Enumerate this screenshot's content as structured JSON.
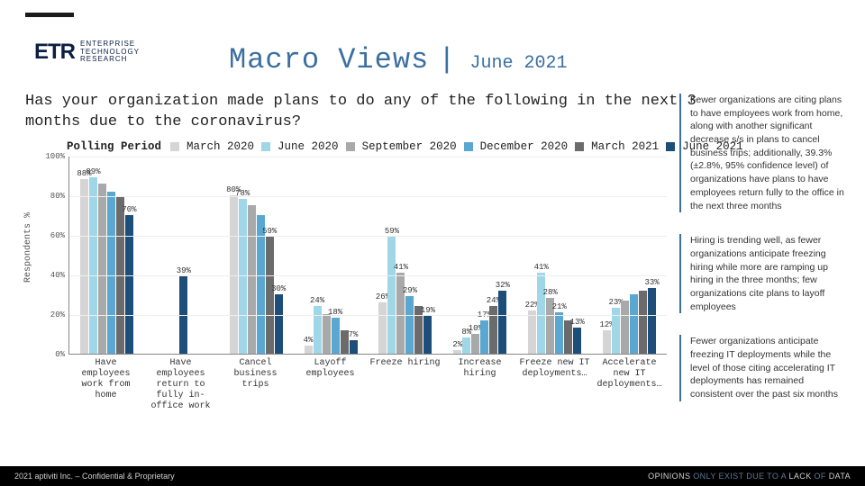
{
  "logo": {
    "brand": "ETR",
    "line1": "ENTERPRISE",
    "line2": "TECHNOLOGY",
    "line3": "RESEARCH"
  },
  "header": {
    "title": "Macro Views",
    "pipe": "|",
    "date": "June 2021"
  },
  "question": "Has your organization made plans to do any of the following in the next 3 months due to the coronavirus?",
  "legend": {
    "label": "Polling Period",
    "series": [
      {
        "name": "March 2020",
        "color": "#d5d5d5"
      },
      {
        "name": "June 2020",
        "color": "#9fd6e8"
      },
      {
        "name": "September 2020",
        "color": "#a9a9a9"
      },
      {
        "name": "December 2020",
        "color": "#5aa7d1"
      },
      {
        "name": "March 2021",
        "color": "#6b6b6b"
      },
      {
        "name": "June 2021",
        "color": "#1d4e79"
      }
    ]
  },
  "chart": {
    "type": "bar",
    "y_axis_label": "Respondents %",
    "ylim": [
      0,
      100
    ],
    "ytick_step": 20,
    "yticks": [
      "0%",
      "20%",
      "40%",
      "60%",
      "80%",
      "100%"
    ],
    "grid_color": "#eeeeee",
    "axis_color": "#888888",
    "background_color": "#ffffff",
    "bar_labels_visible": [
      {
        "cat": 0,
        "series": 0,
        "text": "88%"
      },
      {
        "cat": 0,
        "series": 1,
        "text": "89%"
      },
      {
        "cat": 0,
        "series": 5,
        "text": "70%"
      },
      {
        "cat": 1,
        "series": 5,
        "text": "39%"
      },
      {
        "cat": 2,
        "series": 0,
        "text": "80%"
      },
      {
        "cat": 2,
        "series": 1,
        "text": "78%"
      },
      {
        "cat": 2,
        "series": 4,
        "text": "59%"
      },
      {
        "cat": 2,
        "series": 5,
        "text": "30%"
      },
      {
        "cat": 3,
        "series": 0,
        "text": "4%"
      },
      {
        "cat": 3,
        "series": 1,
        "text": "24%"
      },
      {
        "cat": 3,
        "series": 3,
        "text": "18%"
      },
      {
        "cat": 3,
        "series": 5,
        "text": "7%"
      },
      {
        "cat": 4,
        "series": 0,
        "text": "26%"
      },
      {
        "cat": 4,
        "series": 1,
        "text": "59%"
      },
      {
        "cat": 4,
        "series": 2,
        "text": "41%"
      },
      {
        "cat": 4,
        "series": 3,
        "text": "29%"
      },
      {
        "cat": 4,
        "series": 5,
        "text": "19%"
      },
      {
        "cat": 5,
        "series": 0,
        "text": "2%"
      },
      {
        "cat": 5,
        "series": 1,
        "text": "8%"
      },
      {
        "cat": 5,
        "series": 2,
        "text": "10%"
      },
      {
        "cat": 5,
        "series": 3,
        "text": "17%"
      },
      {
        "cat": 5,
        "series": 4,
        "text": "24%"
      },
      {
        "cat": 5,
        "series": 5,
        "text": "32%"
      },
      {
        "cat": 6,
        "series": 0,
        "text": "22%"
      },
      {
        "cat": 6,
        "series": 1,
        "text": "41%"
      },
      {
        "cat": 6,
        "series": 2,
        "text": "28%"
      },
      {
        "cat": 6,
        "series": 3,
        "text": "21%"
      },
      {
        "cat": 6,
        "series": 5,
        "text": "13%"
      },
      {
        "cat": 7,
        "series": 0,
        "text": "12%"
      },
      {
        "cat": 7,
        "series": 1,
        "text": "23%"
      },
      {
        "cat": 7,
        "series": 5,
        "text": "33%"
      }
    ],
    "categories": [
      {
        "label": "Have employees work from home",
        "values": [
          88,
          89,
          86,
          82,
          79,
          70
        ]
      },
      {
        "label": "Have employees return to fully in-office work",
        "values": [
          null,
          null,
          null,
          null,
          null,
          39
        ]
      },
      {
        "label": "Cancel business trips",
        "values": [
          80,
          78,
          75,
          70,
          59,
          30
        ]
      },
      {
        "label": "Layoff employees",
        "values": [
          4,
          24,
          20,
          18,
          12,
          7
        ]
      },
      {
        "label": "Freeze hiring",
        "values": [
          26,
          59,
          41,
          29,
          24,
          19
        ]
      },
      {
        "label": "Increase hiring",
        "values": [
          2,
          8,
          10,
          17,
          24,
          32
        ]
      },
      {
        "label": "Freeze new IT deployments…",
        "values": [
          22,
          41,
          28,
          21,
          17,
          13
        ]
      },
      {
        "label": "Accelerate new IT deployments…",
        "values": [
          12,
          23,
          27,
          30,
          32,
          33
        ]
      }
    ]
  },
  "sidebar": [
    "Fewer organizations are citing plans to have employees work from home, along with another significant decrease s/s in plans to cancel business trips; additionally, 39.3% (±2.8%, 95% confidence level) of organizations have plans to have employees return fully to the office in the next three months",
    "Hiring is trending well, as fewer organizations anticipate freezing hiring while more are ramping up hiring in the three months; few organizations cite plans to layoff employees",
    "Fewer organizations anticipate freezing IT deployments while the level of those citing accelerating IT deployments has remained consistent over the past six months"
  ],
  "footer": {
    "left": "2021 aptiviti Inc. – Confidential & Proprietary",
    "right_a": "OPINIONS ",
    "right_b": "ONLY EXIST DUE TO A ",
    "right_c": "LACK ",
    "right_d": "OF ",
    "right_e": "DATA"
  }
}
